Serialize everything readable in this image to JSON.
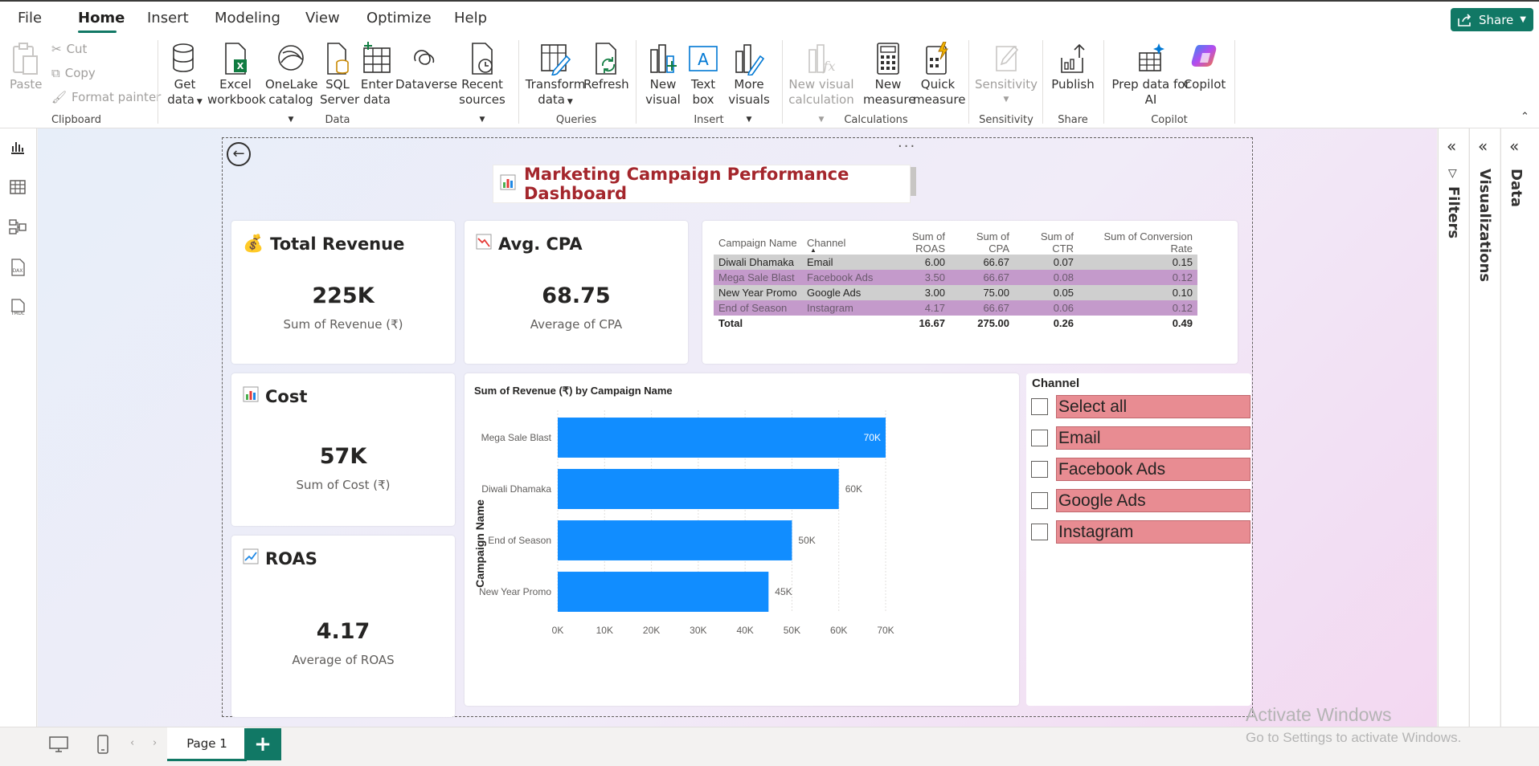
{
  "menu": {
    "tabs": [
      "File",
      "Home",
      "Insert",
      "Modeling",
      "View",
      "Optimize",
      "Help"
    ],
    "active": "Home",
    "share_label": "Share"
  },
  "ribbon": {
    "clipboard": {
      "paste": "Paste",
      "cut": "Cut",
      "copy": "Copy",
      "format_painter": "Format painter",
      "group": "Clipboard"
    },
    "data": {
      "get_data_1": "Get",
      "get_data_2": "data",
      "excel_1": "Excel",
      "excel_2": "workbook",
      "onelake_1": "OneLake",
      "onelake_2": "catalog",
      "sql_1": "SQL",
      "sql_2": "Server",
      "enter_1": "Enter",
      "enter_2": "data",
      "dataverse": "Dataverse",
      "recent_1": "Recent",
      "recent_2": "sources",
      "group": "Data"
    },
    "queries": {
      "transform_1": "Transform",
      "transform_2": "data",
      "refresh": "Refresh",
      "group": "Queries"
    },
    "insert": {
      "new_visual_1": "New",
      "new_visual_2": "visual",
      "text_box_1": "Text",
      "text_box_2": "box",
      "more_visuals_1": "More",
      "more_visuals_2": "visuals",
      "group": "Insert"
    },
    "calculations": {
      "new_visual_calc_1": "New visual",
      "new_visual_calc_2": "calculation",
      "new_measure_1": "New",
      "new_measure_2": "measure",
      "quick_measure_1": "Quick",
      "quick_measure_2": "measure",
      "group": "Calculations"
    },
    "sensitivity": {
      "label": "Sensitivity",
      "group": "Sensitivity"
    },
    "share": {
      "publish": "Publish",
      "group": "Share"
    },
    "copilot": {
      "prep_1": "Prep data for",
      "prep_2": "AI",
      "copilot": "Copilot",
      "group": "Copilot"
    }
  },
  "report": {
    "title": "Marketing Campaign Performance Dashboard",
    "kpis": {
      "revenue": {
        "title": "Total Revenue",
        "value": "225K",
        "sub": "Sum of Revenue (₹)"
      },
      "cpa": {
        "title": "Avg. CPA",
        "value": "68.75",
        "sub": "Average of CPA"
      },
      "cost": {
        "title": "Cost",
        "value": "57K",
        "sub": "Sum of Cost (₹)"
      },
      "roas": {
        "title": "ROAS",
        "value": "4.17",
        "sub": "Average of ROAS"
      }
    },
    "table": {
      "headers": [
        "Campaign Name",
        "Channel",
        "Sum of ROAS",
        "Sum of CPA",
        "Sum of CTR",
        "Sum of Conversion Rate"
      ],
      "rows": [
        [
          "Diwali Dhamaka",
          "Email",
          "6.00",
          "66.67",
          "0.07",
          "0.15"
        ],
        [
          "Mega Sale Blast",
          "Facebook Ads",
          "3.50",
          "66.67",
          "0.08",
          "0.12"
        ],
        [
          "New Year Promo",
          "Google Ads",
          "3.00",
          "75.00",
          "0.05",
          "0.10"
        ],
        [
          "End of Season",
          "Instagram",
          "4.17",
          "66.67",
          "0.06",
          "0.12"
        ]
      ],
      "total": [
        "Total",
        "",
        "16.67",
        "275.00",
        "0.26",
        "0.49"
      ]
    },
    "slicer": {
      "title": "Channel",
      "items": [
        "Select all",
        "Email",
        "Facebook Ads",
        "Google Ads",
        "Instagram"
      ]
    }
  },
  "chart_data": {
    "type": "bar",
    "orientation": "horizontal",
    "title": "Sum of Revenue (₹) by Campaign Name",
    "ylabel": "Campaign Name",
    "xlabel": "",
    "categories": [
      "Mega Sale Blast",
      "Diwali Dhamaka",
      "End of Season",
      "New Year Promo"
    ],
    "values": [
      70000,
      60000,
      50000,
      45000
    ],
    "data_labels": [
      "70K",
      "60K",
      "50K",
      "45K"
    ],
    "xlim": [
      0,
      70000
    ],
    "ticks": [
      0,
      10000,
      20000,
      30000,
      40000,
      50000,
      60000,
      70000
    ],
    "tick_labels": [
      "0K",
      "10K",
      "20K",
      "30K",
      "40K",
      "50K",
      "60K",
      "70K"
    ],
    "bar_color": "#118dff",
    "grid": true
  },
  "panes": {
    "filters": "Filters",
    "visualizations": "Visualizations",
    "data": "Data"
  },
  "bottom": {
    "page_tab": "Page 1",
    "add_page": "+"
  },
  "watermark": {
    "line1": "Activate Windows",
    "line2": "Go to Settings to activate Windows."
  },
  "colors": {
    "accent": "#117865",
    "title_red": "#a4262c",
    "bar": "#118dff"
  }
}
